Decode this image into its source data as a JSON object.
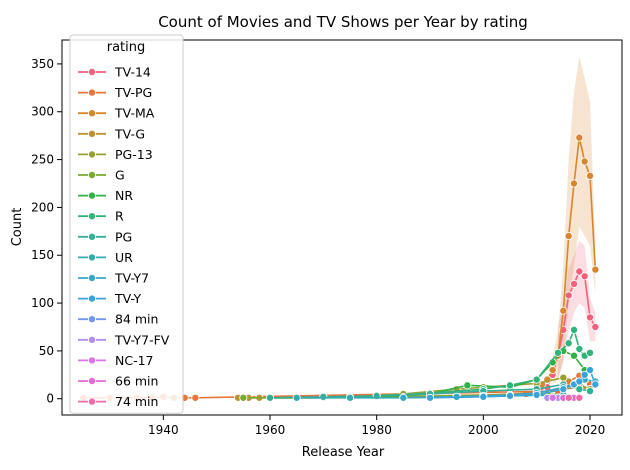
{
  "chart_data": {
    "type": "line",
    "title": "Count of Movies and TV Shows per Year by rating",
    "xlabel": "Release Year",
    "ylabel": "Count",
    "xlim": [
      1921,
      2026
    ],
    "ylim": [
      -17,
      375
    ],
    "xticks": [
      1940,
      1960,
      1980,
      2000,
      2020
    ],
    "yticks": [
      0,
      50,
      100,
      150,
      200,
      250,
      300,
      350
    ],
    "grid": false,
    "legend": {
      "title": "rating",
      "placement": "top-left"
    },
    "series": [
      {
        "name": "TV-14",
        "color": "#f0627c",
        "x": [
          2008,
          2010,
          2012,
          2013,
          2014,
          2015,
          2016,
          2017,
          2018,
          2019,
          2020,
          2021
        ],
        "y": [
          5,
          8,
          12,
          25,
          45,
          72,
          108,
          120,
          133,
          128,
          85,
          75
        ],
        "band": [
          [
            2014,
            20,
            75
          ],
          [
            2015,
            40,
            100
          ],
          [
            2016,
            70,
            135
          ],
          [
            2017,
            90,
            150
          ],
          [
            2018,
            100,
            165
          ],
          [
            2019,
            95,
            160
          ],
          [
            2020,
            60,
            105
          ],
          [
            2021,
            60,
            90
          ]
        ]
      },
      {
        "name": "TV-PG",
        "color": "#e8743b",
        "x": [
          1925,
          1930,
          1935,
          1938,
          1940,
          1942,
          1944,
          1946,
          2014,
          2016,
          2018,
          2019,
          2020
        ],
        "y": [
          1,
          1,
          1,
          1,
          2,
          1,
          1,
          1,
          8,
          18,
          24,
          20,
          15
        ]
      },
      {
        "name": "TV-MA",
        "color": "#d6862c",
        "x": [
          2010,
          2011,
          2012,
          2013,
          2014,
          2015,
          2016,
          2017,
          2018,
          2019,
          2020,
          2021
        ],
        "y": [
          10,
          15,
          20,
          30,
          45,
          92,
          170,
          225,
          273,
          248,
          233,
          135
        ],
        "band": [
          [
            2013,
            15,
            45
          ],
          [
            2014,
            20,
            70
          ],
          [
            2015,
            40,
            140
          ],
          [
            2016,
            100,
            250
          ],
          [
            2017,
            140,
            320
          ],
          [
            2018,
            180,
            358
          ],
          [
            2019,
            170,
            335
          ],
          [
            2020,
            160,
            310
          ],
          [
            2021,
            110,
            160
          ]
        ]
      },
      {
        "name": "TV-G",
        "color": "#bc9235",
        "x": [
          1954,
          1956,
          1958,
          1960,
          1970,
          1980,
          1990,
          2000,
          2010,
          2015,
          2018,
          2020
        ],
        "y": [
          1,
          1,
          1,
          1,
          1,
          2,
          3,
          4,
          6,
          10,
          12,
          10
        ]
      },
      {
        "name": "PG-13",
        "color": "#9a9f32",
        "x": [
          1975,
          1985,
          1995,
          2000,
          2005,
          2010,
          2015,
          2018,
          2020
        ],
        "y": [
          2,
          5,
          10,
          12,
          14,
          16,
          22,
          15,
          10
        ]
      },
      {
        "name": "G",
        "color": "#7aaa32",
        "x": [
          1955,
          1965,
          1975,
          1985,
          1995,
          2005,
          2012,
          2018
        ],
        "y": [
          1,
          1,
          2,
          2,
          3,
          4,
          5,
          3
        ]
      },
      {
        "name": "NR",
        "color": "#31b043",
        "x": [
          1960,
          1970,
          1980,
          1990,
          1997,
          2005,
          2010,
          2013,
          2015,
          2017,
          2019
        ],
        "y": [
          1,
          1,
          2,
          5,
          14,
          12,
          20,
          38,
          50,
          45,
          30
        ]
      },
      {
        "name": "R",
        "color": "#33b27a",
        "x": [
          1970,
          1980,
          1990,
          2000,
          2005,
          2010,
          2014,
          2016,
          2017,
          2018,
          2019,
          2020
        ],
        "y": [
          2,
          3,
          6,
          10,
          14,
          20,
          48,
          58,
          72,
          52,
          45,
          48
        ]
      },
      {
        "name": "PG",
        "color": "#35ae96",
        "x": [
          1960,
          1970,
          1980,
          1990,
          2000,
          2010,
          2015,
          2018,
          2020
        ],
        "y": [
          1,
          2,
          3,
          5,
          8,
          10,
          15,
          10,
          8
        ]
      },
      {
        "name": "UR",
        "color": "#36aab0",
        "x": [
          1965,
          1975,
          1985,
          1995,
          2005,
          2015,
          2018
        ],
        "y": [
          1,
          1,
          1,
          2,
          3,
          4,
          2
        ]
      },
      {
        "name": "TV-Y7",
        "color": "#39a7c4",
        "x": [
          1985,
          1995,
          2000,
          2005,
          2010,
          2015,
          2017,
          2019,
          2021
        ],
        "y": [
          1,
          2,
          3,
          4,
          6,
          12,
          15,
          20,
          18
        ]
      },
      {
        "name": "TV-Y",
        "color": "#3ba3d9",
        "x": [
          1990,
          2000,
          2005,
          2010,
          2015,
          2017,
          2018,
          2019,
          2020,
          2021
        ],
        "y": [
          1,
          2,
          3,
          4,
          10,
          15,
          18,
          25,
          30,
          15
        ]
      },
      {
        "name": "84 min",
        "color": "#7297ec",
        "x": [
          2014,
          2016,
          2018
        ],
        "y": [
          1,
          1,
          1
        ]
      },
      {
        "name": "TV-Y7-FV",
        "color": "#b18ee9",
        "x": [
          2012,
          2014,
          2016
        ],
        "y": [
          1,
          1,
          1
        ]
      },
      {
        "name": "NC-17",
        "color": "#d973ea",
        "x": [
          2013,
          2015,
          2016,
          2017,
          2018
        ],
        "y": [
          1,
          1,
          1,
          1,
          1
        ]
      },
      {
        "name": "66 min",
        "color": "#e36bd3",
        "x": [
          2015,
          2017
        ],
        "y": [
          1,
          1
        ]
      },
      {
        "name": "74 min",
        "color": "#ef6aa7",
        "x": [
          2016,
          2018
        ],
        "y": [
          1,
          1
        ]
      }
    ]
  }
}
